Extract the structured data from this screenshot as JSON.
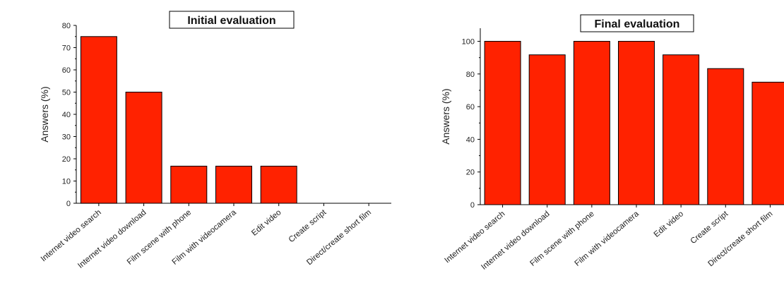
{
  "chart_data": [
    {
      "type": "bar",
      "title": "Initial evaluation",
      "xlabel": "",
      "ylabel": "Answers (%)",
      "ylim": [
        0,
        80
      ],
      "yticks": [
        0,
        10,
        20,
        30,
        40,
        50,
        60,
        70,
        80
      ],
      "categories": [
        "Internet video search",
        "Internet video download",
        "Film scene with phone",
        "Film with videocamera",
        "Edit video",
        "Create script",
        "Direct/create short film"
      ],
      "values": [
        75,
        50,
        16.7,
        16.7,
        16.7,
        0,
        0
      ],
      "bar_color": "#ff2200",
      "grid": false
    },
    {
      "type": "bar",
      "title": "Final evaluation",
      "xlabel": "",
      "ylabel": "Answers (%)",
      "ylim": [
        0,
        108
      ],
      "yticks": [
        0,
        20,
        40,
        60,
        80,
        100
      ],
      "categories": [
        "Internet video search",
        "Internet video download",
        "Film scene with phone",
        "Film with videocamera",
        "Edit video",
        "Create script",
        "Direct/create short film"
      ],
      "values": [
        100,
        91.7,
        100,
        100,
        91.7,
        83.3,
        75
      ],
      "bar_color": "#ff2200",
      "grid": false
    }
  ]
}
